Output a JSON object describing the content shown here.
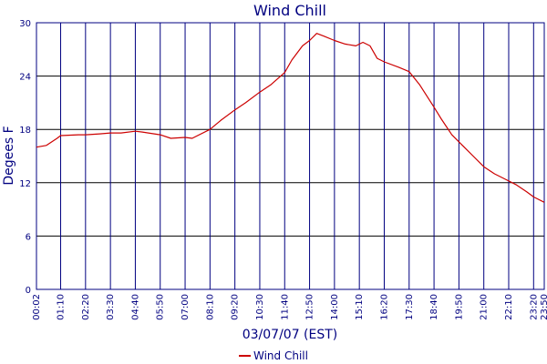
{
  "chart_data": {
    "type": "line",
    "title": "Wind Chill",
    "xlabel": "03/07/07 (EST)",
    "ylabel": "Degees F",
    "ylim": [
      0,
      30
    ],
    "yticks": [
      0,
      6,
      12,
      18,
      24,
      30
    ],
    "grid": true,
    "legend": "bottom-center",
    "xtick_labels": [
      "00:02",
      "01:10",
      "02:20",
      "03:30",
      "04:40",
      "05:50",
      "07:00",
      "08:10",
      "09:20",
      "10:30",
      "11:40",
      "12:50",
      "14:00",
      "15:10",
      "16:20",
      "17:30",
      "18:40",
      "19:50",
      "21:00",
      "22:10",
      "23:20",
      "23:50"
    ],
    "series": [
      {
        "name": "Wind Chill",
        "color": "#cc0000",
        "x": [
          "00:02",
          "00:30",
          "01:00",
          "01:10",
          "02:00",
          "02:20",
          "03:00",
          "03:30",
          "04:00",
          "04:40",
          "05:00",
          "05:50",
          "06:20",
          "07:00",
          "07:20",
          "08:10",
          "08:40",
          "09:20",
          "09:50",
          "10:30",
          "11:00",
          "11:40",
          "12:00",
          "12:30",
          "12:50",
          "13:10",
          "13:30",
          "14:00",
          "14:30",
          "15:00",
          "15:20",
          "15:40",
          "16:00",
          "16:20",
          "17:00",
          "17:30",
          "18:00",
          "18:40",
          "19:00",
          "19:30",
          "20:00",
          "20:30",
          "21:00",
          "21:30",
          "22:00",
          "22:30",
          "23:00",
          "23:20",
          "23:50"
        ],
        "y": [
          16.0,
          16.2,
          17.0,
          17.3,
          17.4,
          17.4,
          17.5,
          17.6,
          17.6,
          17.8,
          17.7,
          17.4,
          17.0,
          17.1,
          17.0,
          18.0,
          19.0,
          20.2,
          21.0,
          22.2,
          23.0,
          24.4,
          25.8,
          27.4,
          28.0,
          28.8,
          28.5,
          28.0,
          27.6,
          27.4,
          27.8,
          27.4,
          26.0,
          25.6,
          25.0,
          24.5,
          23.0,
          20.5,
          19.2,
          17.4,
          16.2,
          15.0,
          13.8,
          13.0,
          12.4,
          11.8,
          11.0,
          10.4,
          9.8
        ]
      }
    ]
  }
}
